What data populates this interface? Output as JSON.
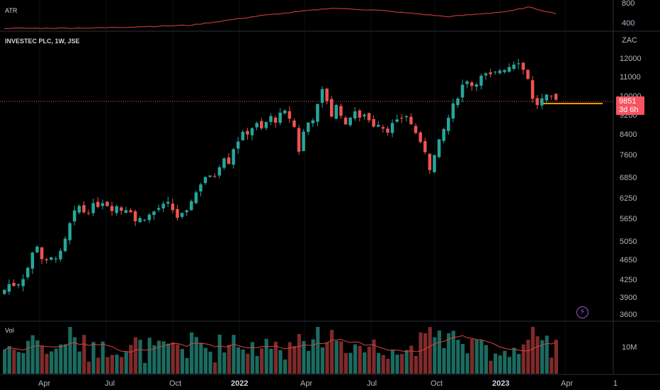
{
  "panes": {
    "atr": {
      "label": "ATR",
      "ticks": [
        "800",
        "400"
      ]
    },
    "price": {
      "title": "INVESTEC PLC, 1W, JSE",
      "currency": "ZAC",
      "ticks": [
        "12000",
        "11000",
        "10000",
        "9200",
        "8400",
        "7600",
        "6850",
        "6250",
        "5650",
        "5050",
        "4650",
        "4250",
        "3900",
        "3600"
      ],
      "last_price": "9851",
      "countdown": "3d 6h"
    },
    "volume": {
      "label": "Vol",
      "ticks": [
        "10M"
      ]
    }
  },
  "time_axis": [
    "Apr",
    "Jul",
    "Oct",
    "2022",
    "Apr",
    "Jul",
    "Oct",
    "2023",
    "Apr",
    "1"
  ],
  "colors": {
    "up": "#26a69a",
    "down": "#ef5350",
    "vol_up": "#1b6b60",
    "vol_down": "#7f2a2a",
    "atr_line": "#e04040",
    "support_line": "#ff9800",
    "text": "#d1d4dc"
  },
  "icons": {
    "alert": "lightning-icon"
  },
  "chart_data": {
    "type": "candlestick",
    "title": "INVESTEC PLC, 1W, JSE",
    "ylabel": "ZAC",
    "log_scale": true,
    "ylim": [
      3500,
      12800
    ],
    "last_price": 9851,
    "support_level": 9650,
    "close_path": [
      [
        0,
        4050
      ],
      [
        1,
        4160
      ],
      [
        2,
        4150
      ],
      [
        3,
        4190
      ],
      [
        4,
        4300
      ],
      [
        5,
        4500
      ],
      [
        6,
        4800
      ],
      [
        7,
        5000
      ],
      [
        8,
        4700
      ],
      [
        9,
        4600
      ],
      [
        10,
        4680
      ],
      [
        11,
        4750
      ],
      [
        12,
        4800
      ],
      [
        13,
        5100
      ],
      [
        14,
        5500
      ],
      [
        15,
        5800
      ],
      [
        16,
        6000
      ],
      [
        17,
        5850
      ],
      [
        18,
        5900
      ],
      [
        19,
        6000
      ],
      [
        20,
        6050
      ],
      [
        21,
        6150
      ],
      [
        22,
        6050
      ],
      [
        23,
        5950
      ],
      [
        24,
        6000
      ],
      [
        25,
        5900
      ],
      [
        26,
        5950
      ],
      [
        27,
        5900
      ],
      [
        28,
        5600
      ],
      [
        29,
        5650
      ],
      [
        30,
        5700
      ],
      [
        31,
        5750
      ],
      [
        32,
        5850
      ],
      [
        33,
        5950
      ],
      [
        34,
        6000
      ],
      [
        35,
        6050
      ],
      [
        36,
        5900
      ],
      [
        37,
        5700
      ],
      [
        38,
        5750
      ],
      [
        39,
        5800
      ],
      [
        40,
        6200
      ],
      [
        41,
        6400
      ],
      [
        42,
        6700
      ],
      [
        43,
        6900
      ],
      [
        44,
        6850
      ],
      [
        45,
        6950
      ],
      [
        46,
        7300
      ],
      [
        47,
        7600
      ],
      [
        48,
        7400
      ],
      [
        49,
        7900
      ],
      [
        50,
        8200
      ],
      [
        51,
        8400
      ],
      [
        52,
        8500
      ],
      [
        53,
        8700
      ],
      [
        54,
        8800
      ],
      [
        55,
        8600
      ],
      [
        56,
        8900
      ],
      [
        57,
        9100
      ],
      [
        58,
        9000
      ],
      [
        59,
        9200
      ],
      [
        60,
        9300
      ],
      [
        61,
        9100
      ],
      [
        62,
        8700
      ],
      [
        63,
        7800
      ],
      [
        64,
        8500
      ],
      [
        65,
        8900
      ],
      [
        66,
        9100
      ],
      [
        67,
        9600
      ],
      [
        68,
        10300
      ],
      [
        69,
        9900
      ],
      [
        70,
        9200
      ],
      [
        71,
        9600
      ],
      [
        72,
        9300
      ],
      [
        73,
        8700
      ],
      [
        74,
        9200
      ],
      [
        75,
        9400
      ],
      [
        76,
        9000
      ],
      [
        77,
        9300
      ],
      [
        78,
        9000
      ],
      [
        79,
        8800
      ],
      [
        80,
        8900
      ],
      [
        81,
        8700
      ],
      [
        82,
        8600
      ],
      [
        83,
        8800
      ],
      [
        84,
        8900
      ],
      [
        85,
        9100
      ],
      [
        86,
        9200
      ],
      [
        87,
        8800
      ],
      [
        88,
        8500
      ],
      [
        89,
        8000
      ],
      [
        90,
        7800
      ],
      [
        91,
        7200
      ],
      [
        92,
        7600
      ],
      [
        93,
        8100
      ],
      [
        94,
        8600
      ],
      [
        95,
        9100
      ],
      [
        96,
        9600
      ],
      [
        97,
        10100
      ],
      [
        98,
        10600
      ],
      [
        99,
        10900
      ],
      [
        100,
        10600
      ],
      [
        101,
        10800
      ],
      [
        102,
        11000
      ],
      [
        103,
        11100
      ],
      [
        104,
        11050
      ],
      [
        105,
        11200
      ],
      [
        106,
        11400
      ],
      [
        107,
        11500
      ],
      [
        108,
        11600
      ],
      [
        109,
        11800
      ],
      [
        110,
        11900
      ],
      [
        111,
        11400
      ],
      [
        112,
        11000
      ],
      [
        113,
        9900
      ],
      [
        114,
        9700
      ],
      [
        115,
        9900
      ],
      [
        116,
        10000
      ],
      [
        117,
        9950
      ],
      [
        118,
        9851
      ]
    ],
    "atr_path": [
      [
        0,
        0.0
      ],
      [
        20,
        0.02
      ],
      [
        40,
        0.15
      ],
      [
        55,
        0.6
      ],
      [
        70,
        0.95
      ],
      [
        80,
        0.85
      ],
      [
        95,
        0.55
      ],
      [
        108,
        0.8
      ],
      [
        112,
        1.0
      ],
      [
        118,
        0.7
      ]
    ]
  }
}
